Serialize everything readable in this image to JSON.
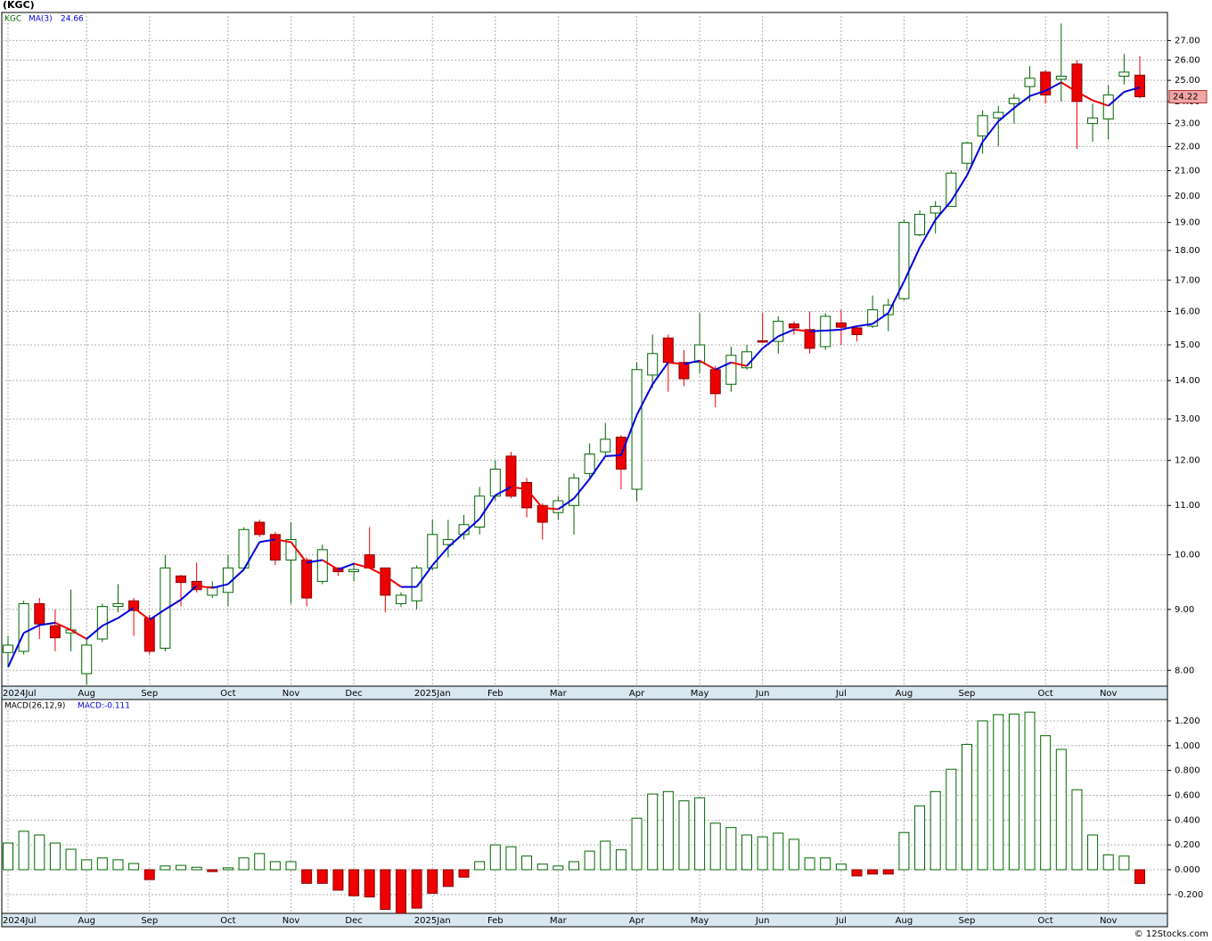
{
  "chart_data": [
    {
      "type": "candlestick",
      "title": "(KGC)",
      "symbol": "KGC",
      "categories": [
        "2024Jul",
        null,
        null,
        null,
        null,
        "Aug",
        null,
        null,
        null,
        "Sep",
        null,
        null,
        null,
        null,
        "Oct",
        null,
        null,
        null,
        "Nov",
        null,
        null,
        null,
        "Dec",
        null,
        null,
        null,
        null,
        "2025Jan",
        null,
        null,
        null,
        "Feb",
        null,
        null,
        null,
        "Mar",
        null,
        null,
        null,
        null,
        "Apr",
        null,
        null,
        null,
        "May",
        null,
        null,
        null,
        "Jun",
        null,
        null,
        null,
        null,
        "Jul",
        null,
        null,
        null,
        "Aug",
        null,
        null,
        null,
        "Sep",
        null,
        null,
        null,
        null,
        "Oct",
        null,
        null,
        null,
        "Nov",
        null,
        null
      ],
      "open": [
        8.28,
        8.3,
        9.1,
        8.72,
        8.6,
        7.95,
        8.5,
        9.05,
        9.15,
        8.85,
        8.35,
        9.6,
        9.5,
        9.25,
        9.3,
        9.75,
        10.65,
        10.4,
        9.9,
        9.9,
        9.5,
        9.75,
        9.68,
        10.0,
        9.75,
        9.1,
        9.15,
        9.75,
        10.2,
        10.4,
        10.55,
        11.2,
        12.1,
        11.5,
        11.0,
        10.85,
        11.0,
        11.7,
        12.2,
        12.55,
        11.35,
        14.15,
        15.2,
        14.5,
        14.5,
        14.3,
        13.9,
        14.35,
        15.12,
        15.1,
        15.62,
        15.45,
        14.95,
        15.65,
        15.5,
        15.55,
        15.9,
        16.4,
        18.55,
        19.35,
        19.6,
        21.3,
        22.45,
        23.25,
        23.9,
        24.7,
        25.4,
        25.05,
        25.8,
        23.0,
        23.2,
        25.2,
        25.25
      ],
      "high": [
        8.55,
        9.15,
        9.2,
        9.0,
        9.35,
        8.5,
        9.1,
        9.45,
        9.2,
        8.9,
        10.0,
        9.62,
        9.85,
        9.5,
        10.0,
        10.55,
        10.7,
        10.45,
        10.65,
        9.95,
        10.2,
        9.75,
        9.85,
        10.55,
        9.75,
        9.3,
        9.8,
        10.7,
        10.7,
        10.8,
        11.4,
        12.0,
        12.2,
        11.6,
        11.05,
        11.2,
        11.7,
        12.4,
        12.9,
        12.6,
        14.5,
        15.3,
        15.3,
        14.85,
        15.95,
        14.4,
        14.95,
        15.0,
        15.95,
        15.85,
        15.7,
        16.0,
        15.95,
        16.05,
        15.55,
        16.5,
        16.4,
        19.1,
        19.45,
        19.8,
        21.0,
        22.2,
        23.6,
        23.8,
        24.35,
        25.7,
        25.5,
        27.9,
        26.0,
        23.9,
        24.75,
        26.3,
        26.2
      ],
      "low": [
        8.05,
        8.25,
        8.5,
        8.3,
        8.3,
        7.78,
        8.45,
        8.95,
        8.55,
        8.25,
        8.3,
        9.05,
        9.3,
        9.2,
        9.05,
        9.7,
        10.35,
        9.8,
        9.1,
        9.05,
        9.45,
        9.6,
        9.5,
        9.75,
        8.95,
        9.05,
        9.0,
        9.7,
        9.95,
        10.3,
        10.4,
        11.1,
        11.15,
        10.75,
        10.3,
        10.7,
        10.4,
        11.6,
        12.1,
        11.35,
        11.1,
        13.8,
        13.7,
        13.85,
        14.2,
        13.3,
        13.7,
        14.3,
        15.05,
        14.75,
        15.3,
        14.75,
        14.85,
        15.0,
        15.1,
        15.5,
        15.4,
        16.35,
        18.5,
        18.6,
        19.6,
        21.0,
        21.7,
        22.0,
        23.0,
        24.0,
        23.9,
        24.0,
        21.9,
        22.2,
        22.3,
        24.8,
        24.15
      ],
      "close": [
        8.4,
        9.1,
        8.75,
        8.52,
        8.65,
        8.4,
        9.05,
        9.1,
        8.98,
        8.3,
        9.75,
        9.48,
        9.35,
        9.4,
        9.75,
        10.5,
        10.4,
        9.9,
        10.3,
        9.2,
        10.1,
        9.68,
        9.72,
        9.75,
        9.25,
        9.25,
        9.75,
        10.4,
        10.3,
        10.6,
        11.2,
        11.8,
        11.2,
        10.95,
        10.65,
        11.1,
        11.6,
        12.15,
        12.5,
        11.8,
        14.3,
        14.75,
        14.5,
        14.05,
        15.0,
        13.65,
        14.7,
        14.8,
        15.08,
        15.7,
        15.5,
        14.9,
        15.85,
        15.52,
        15.3,
        16.05,
        16.2,
        19.0,
        19.3,
        19.6,
        20.9,
        22.15,
        23.35,
        23.5,
        24.15,
        25.1,
        24.3,
        25.2,
        24.0,
        23.25,
        24.3,
        25.4,
        24.22
      ],
      "up_color": "#006600",
      "down_color": "#ee0000",
      "ma": {
        "name": "MA(3)",
        "color": "#0000dd",
        "down_color": "#ee0000",
        "values": [
          8.05,
          8.6,
          8.73,
          8.77,
          8.65,
          8.5,
          8.72,
          8.85,
          9.03,
          8.82,
          9.0,
          9.17,
          9.42,
          9.38,
          9.45,
          9.72,
          10.25,
          10.3,
          10.25,
          9.85,
          9.9,
          9.72,
          9.83,
          9.75,
          9.6,
          9.4,
          9.4,
          9.8,
          10.15,
          10.43,
          10.72,
          11.22,
          11.4,
          11.35,
          10.95,
          10.92,
          11.15,
          11.58,
          12.1,
          12.12,
          13.1,
          13.9,
          14.5,
          14.45,
          14.55,
          14.3,
          14.5,
          14.4,
          14.9,
          15.25,
          15.45,
          15.4,
          15.42,
          15.45,
          15.55,
          15.62,
          15.95,
          16.95,
          18.1,
          19.1,
          19.8,
          20.8,
          22.2,
          23.1,
          23.7,
          24.25,
          24.5,
          24.9,
          24.45,
          24.05,
          23.8,
          24.45,
          24.66
        ]
      },
      "ylim": [
        7.76,
        28.5
      ],
      "log_scale": true,
      "grid": true,
      "yticks": [
        {
          "value": 8,
          "label": "8.00"
        },
        {
          "value": 9,
          "label": "9.00"
        },
        {
          "value": 10,
          "label": "10.00"
        },
        {
          "value": 11,
          "label": "11.00"
        },
        {
          "value": 12,
          "label": "12.00"
        },
        {
          "value": 13,
          "label": "13.00"
        },
        {
          "value": 14,
          "label": "14.00"
        },
        {
          "value": 15,
          "label": "15.00"
        },
        {
          "value": 16,
          "label": "16.00"
        },
        {
          "value": 17,
          "label": "17.00"
        },
        {
          "value": 18,
          "label": "18.00"
        },
        {
          "value": 19,
          "label": "19.00"
        },
        {
          "value": 20,
          "label": "20.00"
        },
        {
          "value": 21,
          "label": "21.00"
        },
        {
          "value": 22,
          "label": "22.00"
        },
        {
          "value": 23,
          "label": "23.00"
        },
        {
          "value": 24,
          "label": "24.00"
        },
        {
          "value": 25,
          "label": "25.00"
        },
        {
          "value": 26,
          "label": "26.00"
        },
        {
          "value": 27,
          "label": "27.00"
        }
      ]
    },
    {
      "type": "bar",
      "title": "MACD(26,12,9)",
      "value_label": "MACD:",
      "categories": [
        "2024Jul",
        null,
        null,
        null,
        null,
        "Aug",
        null,
        null,
        null,
        "Sep",
        null,
        null,
        null,
        null,
        "Oct",
        null,
        null,
        null,
        "Nov",
        null,
        null,
        null,
        "Dec",
        null,
        null,
        null,
        null,
        "2025Jan",
        null,
        null,
        null,
        "Feb",
        null,
        null,
        null,
        "Mar",
        null,
        null,
        null,
        null,
        "Apr",
        null,
        null,
        null,
        "May",
        null,
        null,
        null,
        "Jun",
        null,
        null,
        null,
        null,
        "Jul",
        null,
        null,
        null,
        "Aug",
        null,
        null,
        null,
        "Sep",
        null,
        null,
        null,
        null,
        "Oct",
        null,
        null,
        null,
        "Nov",
        null,
        null
      ],
      "values": [
        0.215,
        0.31,
        0.28,
        0.215,
        0.165,
        0.08,
        0.095,
        0.08,
        0.05,
        -0.08,
        0.03,
        0.035,
        0.02,
        -0.015,
        0.015,
        0.095,
        0.13,
        0.065,
        0.065,
        -0.11,
        -0.11,
        -0.165,
        -0.21,
        -0.22,
        -0.32,
        -0.35,
        -0.31,
        -0.19,
        -0.135,
        -0.06,
        0.065,
        0.2,
        0.185,
        0.11,
        0.045,
        0.03,
        0.065,
        0.15,
        0.23,
        0.16,
        0.415,
        0.61,
        0.63,
        0.555,
        0.58,
        0.375,
        0.34,
        0.28,
        0.265,
        0.295,
        0.245,
        0.095,
        0.095,
        0.045,
        -0.05,
        -0.035,
        -0.035,
        0.3,
        0.515,
        0.63,
        0.81,
        1.01,
        1.2,
        1.25,
        1.255,
        1.27,
        1.08,
        0.97,
        0.645,
        0.28,
        0.12,
        0.11,
        -0.111
      ],
      "up_color": "#006600",
      "down_color": "#ee0000",
      "ylim": [
        -0.352,
        1.372
      ],
      "grid": true,
      "yticks": [
        {
          "value": -0.2,
          "label": "-0.200"
        },
        {
          "value": 0,
          "label": "0.000"
        },
        {
          "value": 0.2,
          "label": "0.200"
        },
        {
          "value": 0.4,
          "label": "0.400"
        },
        {
          "value": 0.6,
          "label": "0.600"
        },
        {
          "value": 0.8,
          "label": "0.800"
        },
        {
          "value": 1.0,
          "label": "1.000"
        },
        {
          "value": 1.2,
          "label": "1.200"
        }
      ]
    }
  ],
  "footer": "© 12Stocks.com"
}
